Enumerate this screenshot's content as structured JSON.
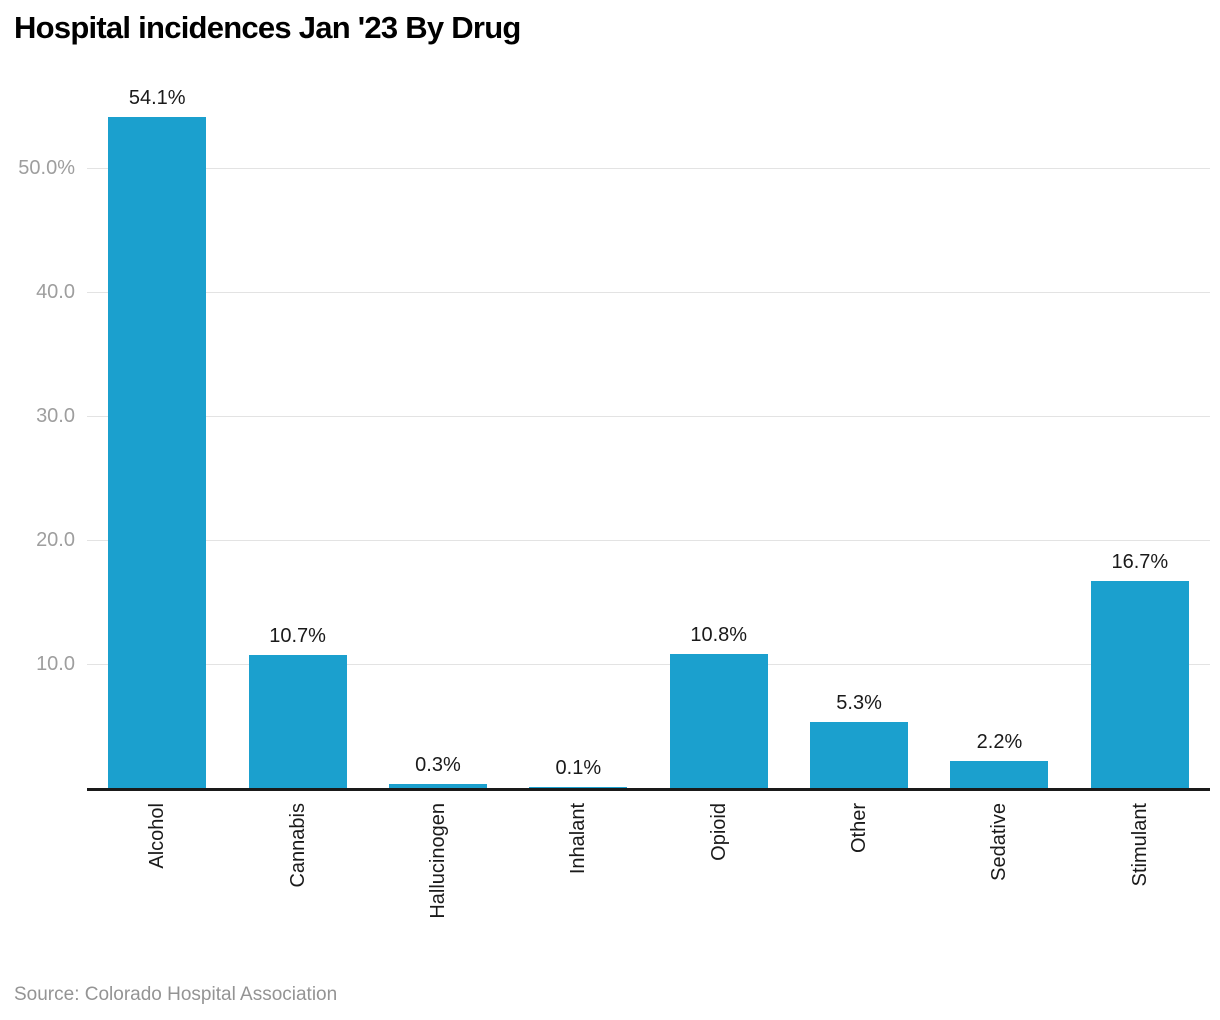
{
  "title": "Hospital incidences Jan '23 By Drug",
  "source": "Source: Colorado Hospital Association",
  "colors": {
    "bar": "#1BA0CE",
    "axis_line": "#1a1a1a",
    "gridline": "#e3e3e3",
    "y_tick_label": "#9e9e9e",
    "value_label": "#1a1a1a",
    "x_label": "#1a1a1a",
    "source_text": "#949494",
    "title_text": "#000000",
    "background": "#ffffff"
  },
  "chart_data": {
    "type": "bar",
    "title": "Hospital incidences Jan '23 By Drug",
    "categories": [
      "Alcohol",
      "Cannabis",
      "Hallucinogen",
      "Inhalant",
      "Opioid",
      "Other",
      "Sedative",
      "Stimulant"
    ],
    "values": [
      54.1,
      10.7,
      0.3,
      0.1,
      10.8,
      5.3,
      2.2,
      16.7
    ],
    "value_labels": [
      "54.1%",
      "10.7%",
      "0.3%",
      "0.1%",
      "10.8%",
      "5.3%",
      "2.2%",
      "16.7%"
    ],
    "unit": "percent",
    "yticks": [
      {
        "value": 50,
        "label": "50.0%"
      },
      {
        "value": 40,
        "label": "40.0"
      },
      {
        "value": 30,
        "label": "30.0"
      },
      {
        "value": 20,
        "label": "20.0"
      },
      {
        "value": 10,
        "label": "10.0"
      }
    ],
    "ylim": [
      0,
      56.5
    ],
    "grid": true,
    "legend": null,
    "xlabel": "",
    "ylabel": "",
    "x_tick_rotation": -90,
    "bar_color": "#1BA0CE",
    "source": "Source: Colorado Hospital Association"
  }
}
